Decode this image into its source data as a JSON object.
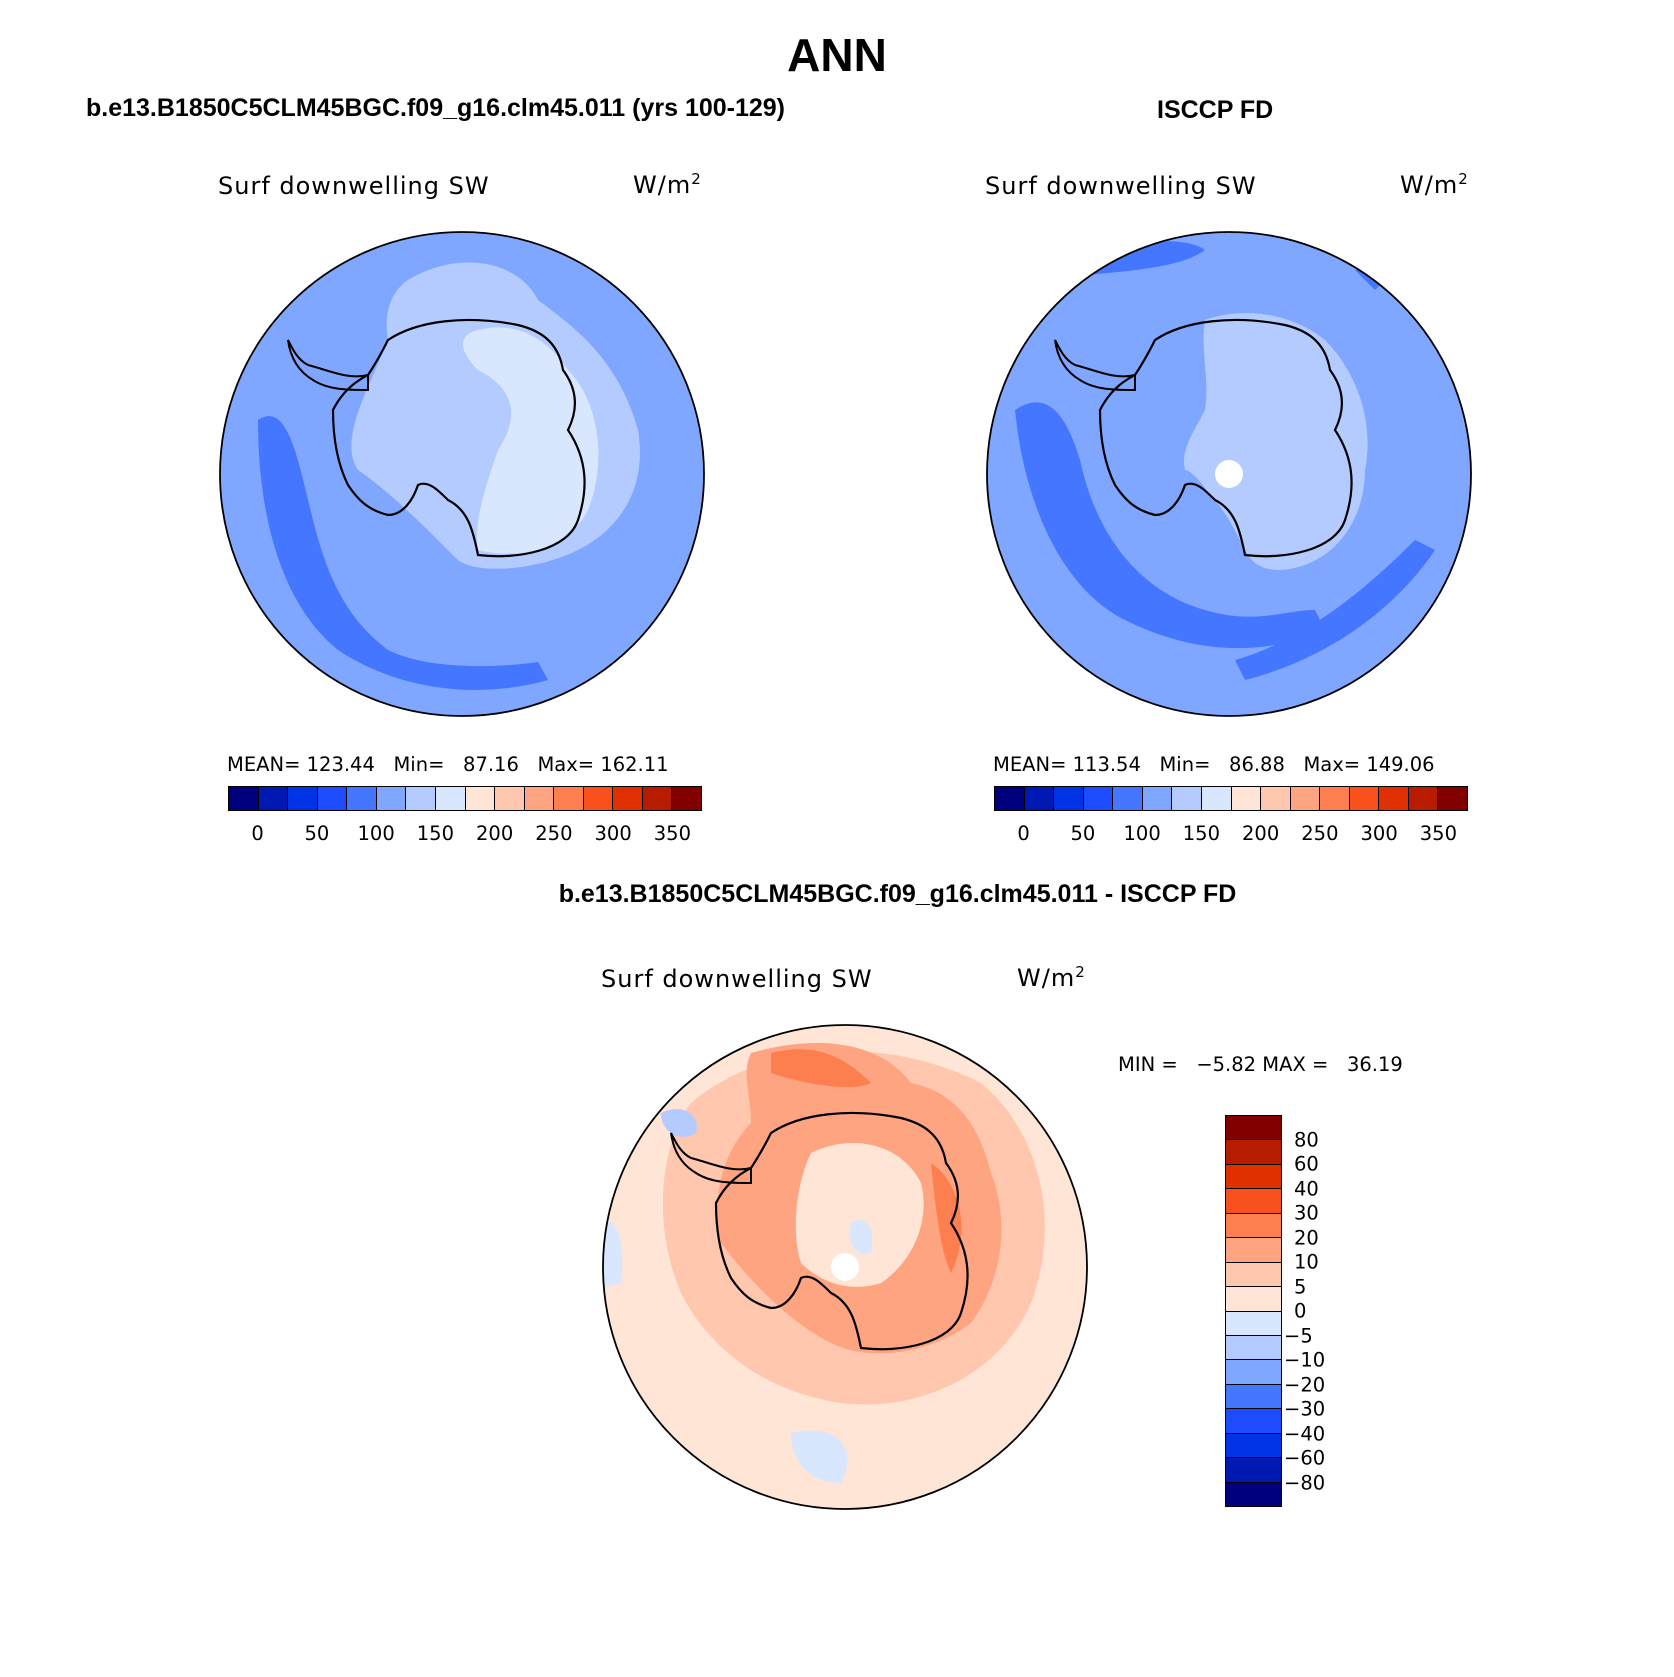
{
  "title": "ANN",
  "palette_abs": [
    "#00007f",
    "#0019b2",
    "#0033e5",
    "#1d4bff",
    "#4476ff",
    "#80a7ff",
    "#b4cbff",
    "#d8e7fe",
    "#fee5d5",
    "#fec7ae",
    "#fea481",
    "#fd7e4e",
    "#f9511e",
    "#e03000",
    "#b81c00",
    "#800000"
  ],
  "palette_diff": [
    "#00007f",
    "#0019b2",
    "#0033e5",
    "#1d4bff",
    "#4476ff",
    "#80a7ff",
    "#b4cbff",
    "#d8e7fe",
    "#fee5d5",
    "#fec7ae",
    "#fea481",
    "#fd7e4e",
    "#f9511e",
    "#e03000",
    "#b81c00",
    "#800000"
  ],
  "panels": [
    {
      "case": "b.e13.B1850C5CLM45BGC.f09_g16.clm45.011 (yrs 100-129)",
      "variable": "Surf downwelling SW",
      "units_base": "W/m",
      "units_exp": "2",
      "mean_label": "MEAN=",
      "mean": "123.44",
      "min_label": "Min=",
      "min": "87.16",
      "max_label": "Max=",
      "max": "162.11",
      "tick_labels": [
        "0",
        "50",
        "100",
        "150",
        "200",
        "250",
        "300",
        "350"
      ]
    },
    {
      "case": "ISCCP FD",
      "variable": "Surf downwelling SW",
      "units_base": "W/m",
      "units_exp": "2",
      "mean_label": "MEAN=",
      "mean": "113.54",
      "min_label": "Min=",
      "min": "86.88",
      "max_label": "Max=",
      "max": "149.06",
      "tick_labels": [
        "0",
        "50",
        "100",
        "150",
        "200",
        "250",
        "300",
        "350"
      ]
    }
  ],
  "difference": {
    "case": "b.e13.B1850C5CLM45BGC.f09_g16.clm45.011 - ISCCP FD",
    "variable": "Surf downwelling SW",
    "units_base": "W/m",
    "units_exp": "2",
    "min_label": "MIN =",
    "min": "−5.82",
    "max_label": "MAX =",
    "max": "36.19",
    "tick_labels": [
      "80",
      "60",
      "40",
      "30",
      "20",
      "10",
      "5",
      "0",
      "−5",
      "−10",
      "−20",
      "−30",
      "−40",
      "−60",
      "−80"
    ]
  }
}
